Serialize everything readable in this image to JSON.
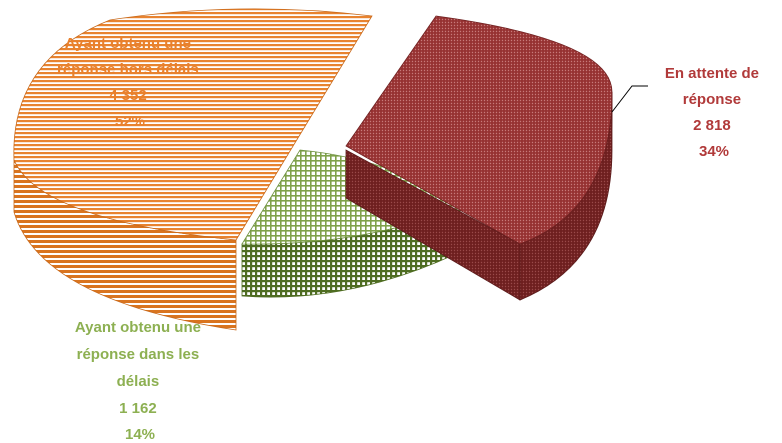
{
  "chart_data": {
    "type": "pie",
    "style": "3d-exploded",
    "categories": [
      "En attente de réponse",
      "Ayant obtenu une réponse dans les délais",
      "Ayant obtenu une réponse hors délais"
    ],
    "values": [
      2818,
      1162,
      4352
    ],
    "percent": [
      34,
      14,
      52
    ],
    "labels": [
      {
        "lines": [
          "En attente de",
          "réponse",
          "2 818",
          "34%"
        ],
        "color": "#b13a3a"
      },
      {
        "lines": [
          "Ayant obtenu une",
          "réponse dans les",
          "délais",
          "1 162",
          "14%"
        ],
        "color": "#8db052"
      },
      {
        "lines": [
          "Ayant obtenu une",
          "réponse hors délais",
          "4 352",
          "52%"
        ],
        "color": "#e9802c"
      }
    ],
    "colors": {
      "pending": "#8f2d2d",
      "on_time": "#8dae5a",
      "late": "#e8832f"
    }
  }
}
